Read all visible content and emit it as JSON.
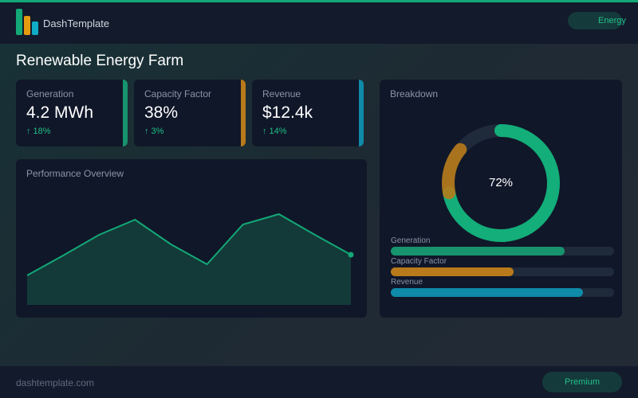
{
  "header": {
    "brand": "DashTemplate",
    "pill": "Energy",
    "accent": "#13a877"
  },
  "page": {
    "title": "Renewable Energy Farm"
  },
  "kpis": [
    {
      "label": "Generation",
      "value": "4.2 MWh",
      "change": "↑ 18%",
      "color": "#17936e"
    },
    {
      "label": "Capacity Factor",
      "value": "38%",
      "change": "↑ 3%",
      "color": "#b87a1a"
    },
    {
      "label": "Revenue",
      "value": "$12.4k",
      "change": "↑ 14%",
      "color": "#0f8aa8"
    }
  ],
  "performance": {
    "title": "Performance Overview",
    "chart_data": {
      "type": "area",
      "values": [
        37,
        62,
        88,
        107,
        76,
        51,
        101,
        114,
        88,
        63
      ],
      "color": "#13a877"
    }
  },
  "breakdown": {
    "title": "Breakdown",
    "donut": {
      "center_label": "72%",
      "primary": 72,
      "secondary": 14,
      "primary_color": "#13ae79",
      "secondary_color": "#b87a1a"
    },
    "bars": [
      {
        "label": "Generation",
        "percent": 78,
        "color": "#17936e"
      },
      {
        "label": "Capacity Factor",
        "percent": 55,
        "color": "#b87a1a"
      },
      {
        "label": "Revenue",
        "percent": 86,
        "color": "#0f8aa8"
      }
    ]
  },
  "footer": {
    "site": "dashtemplate.com",
    "badge": "Premium"
  }
}
